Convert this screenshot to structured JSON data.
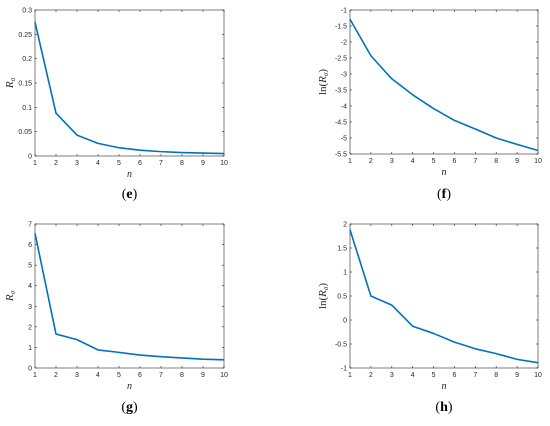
{
  "colors": {
    "series": "#0072BD",
    "axis": "#262626"
  },
  "chart_data": [
    {
      "type": "line",
      "panel": "e",
      "caption": "e",
      "xlabel": "n",
      "ylabel_base": "R",
      "ylabel_sub": "σ",
      "ylabel_func": "",
      "xlim": [
        1,
        10
      ],
      "ylim": [
        0,
        0.3
      ],
      "xticks": [
        "1",
        "2",
        "3",
        "4",
        "5",
        "6",
        "7",
        "8",
        "9",
        "10"
      ],
      "yticks": [
        "0",
        "0.05",
        "0.1",
        "0.15",
        "0.2",
        "0.25",
        "0.3"
      ],
      "x": [
        1,
        2,
        3,
        4,
        5,
        6,
        7,
        8,
        9,
        10
      ],
      "y": [
        0.275,
        0.088,
        0.043,
        0.026,
        0.017,
        0.012,
        0.009,
        0.007,
        0.006,
        0.005
      ]
    },
    {
      "type": "line",
      "panel": "f",
      "caption": "f",
      "xlabel": "n",
      "ylabel_base": "R",
      "ylabel_sub": "σ",
      "ylabel_func": "ln",
      "xlim": [
        1,
        10
      ],
      "ylim": [
        -5.5,
        -1
      ],
      "xticks": [
        "1",
        "2",
        "3",
        "4",
        "5",
        "6",
        "7",
        "8",
        "9",
        "10"
      ],
      "yticks": [
        "-5.5",
        "-5",
        "-4.5",
        "-4",
        "-3.5",
        "-3",
        "-2.5",
        "-2",
        "-1.5",
        "-1"
      ],
      "x": [
        1,
        2,
        3,
        4,
        5,
        6,
        7,
        8,
        9,
        10
      ],
      "y": [
        -1.29,
        -2.43,
        -3.15,
        -3.65,
        -4.08,
        -4.45,
        -4.72,
        -5.0,
        -5.2,
        -5.39
      ]
    },
    {
      "type": "line",
      "panel": "g",
      "caption": "g",
      "xlabel": "n",
      "ylabel_base": "R",
      "ylabel_sub": "σ",
      "ylabel_func": "",
      "xlim": [
        1,
        10
      ],
      "ylim": [
        0,
        7
      ],
      "xticks": [
        "1",
        "2",
        "3",
        "4",
        "5",
        "6",
        "7",
        "8",
        "9",
        "10"
      ],
      "yticks": [
        "0",
        "1",
        "2",
        "3",
        "4",
        "5",
        "6",
        "7"
      ],
      "x": [
        1,
        2,
        3,
        4,
        5,
        6,
        7,
        8,
        9,
        10
      ],
      "y": [
        6.55,
        1.65,
        1.38,
        0.88,
        0.76,
        0.63,
        0.55,
        0.49,
        0.43,
        0.4
      ]
    },
    {
      "type": "line",
      "panel": "h",
      "caption": "h",
      "xlabel": "n",
      "ylabel_base": "R",
      "ylabel_sub": "σ",
      "ylabel_func": "ln",
      "xlim": [
        1,
        10
      ],
      "ylim": [
        -1,
        2
      ],
      "xticks": [
        "1",
        "2",
        "3",
        "4",
        "5",
        "6",
        "7",
        "8",
        "9",
        "10"
      ],
      "yticks": [
        "-1",
        "-0.5",
        "0",
        "0.5",
        "1",
        "1.5",
        "2"
      ],
      "x": [
        1,
        2,
        3,
        4,
        5,
        6,
        7,
        8,
        9,
        10
      ],
      "y": [
        1.88,
        0.5,
        0.31,
        -0.13,
        -0.28,
        -0.46,
        -0.6,
        -0.7,
        -0.82,
        -0.89
      ]
    }
  ]
}
